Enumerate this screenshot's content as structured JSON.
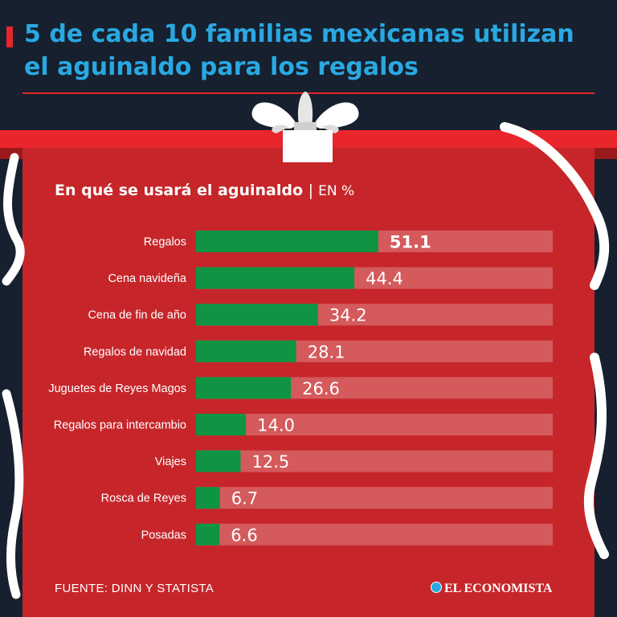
{
  "headline": "5 de cada 10 familias mexicanas utilizan el aguinaldo para los regalos",
  "chart_data": {
    "type": "bar",
    "orientation": "horizontal",
    "title": "En qué se usará el aguinaldo",
    "unit": "EN %",
    "categories": [
      "Regalos",
      "Cena navideña",
      "Cena de fin de año",
      "Regalos de navidad",
      "Juguetes de Reyes Magos",
      "Regalos para intercambio",
      "Viajes",
      "Rosca de Reyes",
      "Posadas"
    ],
    "values": [
      51.1,
      44.4,
      34.2,
      28.1,
      26.6,
      14.0,
      12.5,
      6.7,
      6.6
    ],
    "labels": [
      "51.1",
      "44.4",
      "34.2",
      "28.1",
      "26.6",
      "14.0",
      "12.5",
      "6.7",
      "6.6"
    ],
    "xlim": [
      0,
      100
    ],
    "xlabel": "",
    "ylabel": "",
    "grid": false,
    "legend": "none"
  },
  "source": "FUENTE: DINN Y STATISTA",
  "brand": "EL ECONOMISTA",
  "colors": {
    "background": "#16202e",
    "headline": "#2aa8e2",
    "box": "#c6262a",
    "band": "#e8262b",
    "bar": "#0f9444",
    "track": "#d45a5c"
  }
}
